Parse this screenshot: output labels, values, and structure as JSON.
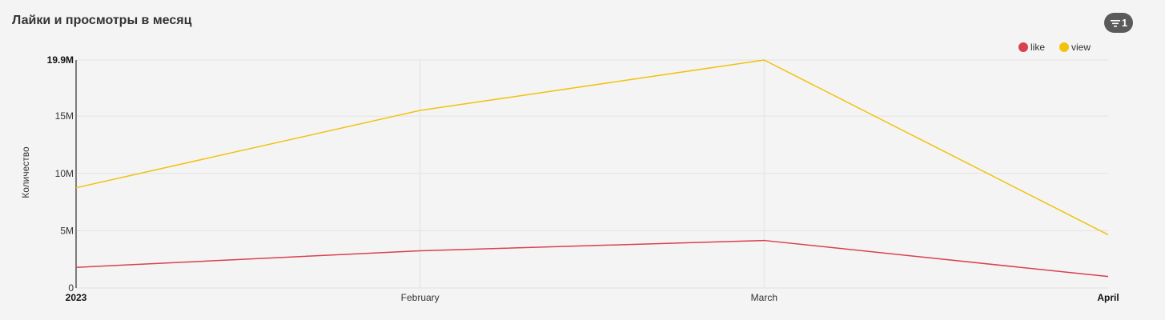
{
  "widget": {
    "title": "Лайки и просмотры в месяц",
    "filter_count": "1",
    "filter_icon": "filter-lines-icon"
  },
  "colors": {
    "background": "#f4f4f4",
    "like": "#d9414f",
    "view": "#f2c20d",
    "grid": "#e2e2e2",
    "axis": "#555555"
  },
  "chart_data": {
    "type": "line",
    "title": "Лайки и просмотры в месяц",
    "ylabel": "Количество",
    "xlabel": "",
    "categories": [
      "2023",
      "February",
      "March",
      "April"
    ],
    "bold_categories": [
      "2023",
      "April"
    ],
    "series": [
      {
        "name": "like",
        "color": "#d9414f",
        "values": [
          1800000,
          3250000,
          4150000,
          1000000
        ]
      },
      {
        "name": "view",
        "color": "#f2c20d",
        "values": [
          8750000,
          15500000,
          19900000,
          4650000
        ]
      }
    ],
    "yticks": [
      {
        "value": 0,
        "label": "0",
        "bold": false
      },
      {
        "value": 5000000,
        "label": "5M",
        "bold": false
      },
      {
        "value": 10000000,
        "label": "10M",
        "bold": false
      },
      {
        "value": 15000000,
        "label": "15M",
        "bold": false
      },
      {
        "value": 19900000,
        "label": "19.9M",
        "bold": true
      }
    ],
    "ylim": [
      0,
      19900000
    ],
    "grid": true,
    "legend_position": "top-right"
  }
}
